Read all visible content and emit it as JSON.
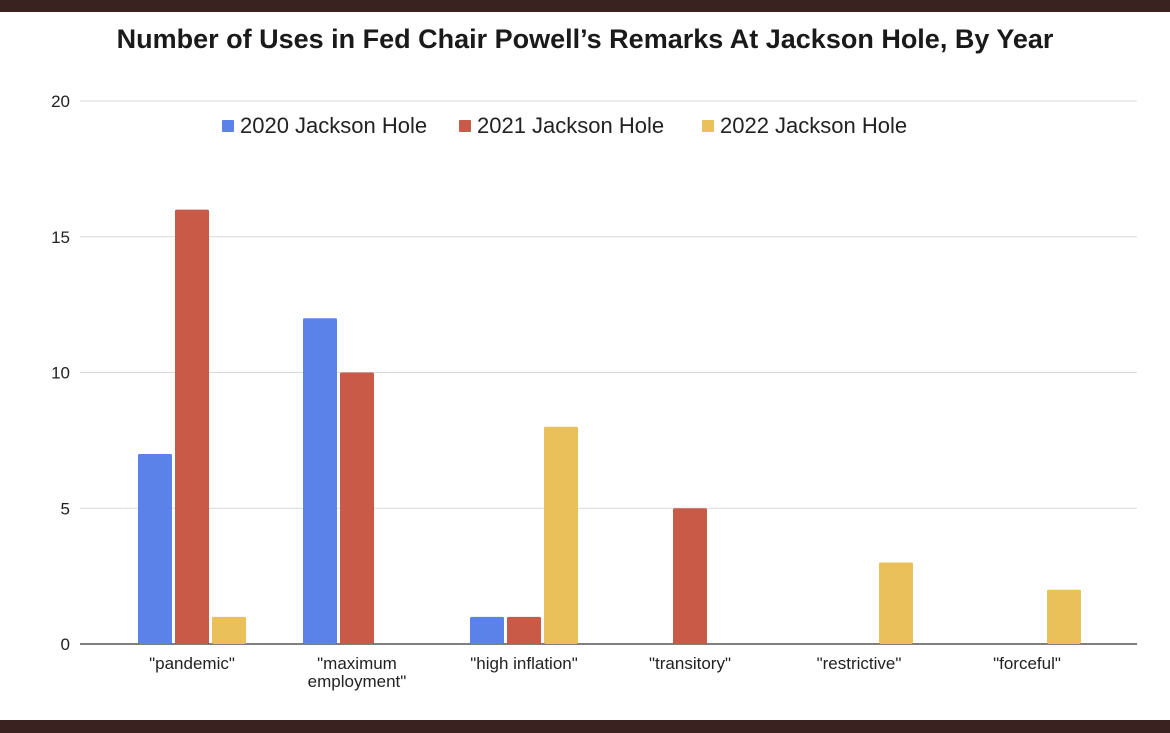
{
  "chart_data": {
    "type": "bar",
    "title": "Number of Uses in Fed Chair Powell’s Remarks At Jackson Hole, By Year",
    "categories": [
      [
        "\"pandemic\""
      ],
      [
        "\"maximum",
        "employment\""
      ],
      [
        "\"high inflation\""
      ],
      [
        "\"transitory\""
      ],
      [
        "\"restrictive\""
      ],
      [
        "\"forceful\""
      ]
    ],
    "series": [
      {
        "name": "2020 Jackson Hole",
        "color": "#5b82e8",
        "values": [
          7,
          12,
          1,
          0,
          0,
          0
        ]
      },
      {
        "name": "2021 Jackson Hole",
        "color": "#c85a47",
        "values": [
          16,
          10,
          1,
          5,
          0,
          0
        ]
      },
      {
        "name": "2022 Jackson Hole",
        "color": "#e9c05a",
        "values": [
          1,
          0,
          8,
          0,
          3,
          2
        ]
      }
    ],
    "ylim": [
      0,
      20
    ],
    "yticks": [
      0,
      5,
      10,
      15,
      20
    ],
    "grid": true,
    "legend_position": "top"
  }
}
